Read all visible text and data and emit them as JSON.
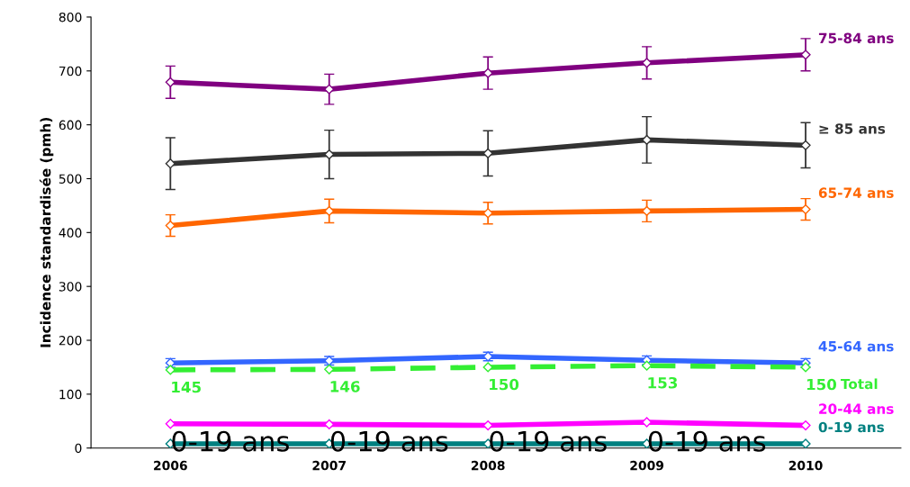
{
  "chart_data": {
    "type": "line",
    "ylabel": "Incidence standardisée (pmh)",
    "categories": [
      "2006",
      "2007",
      "2008",
      "2009",
      "2010"
    ],
    "ylim": [
      0,
      800
    ],
    "yticks": [
      0,
      100,
      200,
      300,
      400,
      500,
      600,
      700,
      800
    ],
    "grid": false,
    "legend": false,
    "marker": "diamond",
    "series": [
      {
        "name": "75-84 ans",
        "color": "#800080",
        "values": [
          679,
          666,
          696,
          715,
          730
        ],
        "errors": [
          30,
          28,
          30,
          30,
          30
        ]
      },
      {
        "name": "≥ 85 ans",
        "color": "#333333",
        "values": [
          528,
          545,
          547,
          572,
          562
        ],
        "errors": [
          48,
          45,
          42,
          43,
          42
        ]
      },
      {
        "name": "65-74 ans",
        "color": "#ff6600",
        "values": [
          413,
          440,
          436,
          440,
          443
        ],
        "errors": [
          20,
          22,
          20,
          20,
          20
        ]
      },
      {
        "name": "45-64 ans",
        "color": "#3366ff",
        "values": [
          158,
          162,
          170,
          163,
          158
        ],
        "errors": [
          8,
          8,
          8,
          8,
          8
        ]
      },
      {
        "name": "Total",
        "color": "#33ee33",
        "line_style": "dashed",
        "values": [
          145,
          146,
          150,
          153,
          150
        ],
        "value_labels": [
          "145",
          "146",
          "150",
          "153",
          "150"
        ]
      },
      {
        "name": "20-44 ans",
        "color": "#ff00ff",
        "values": [
          45,
          44,
          42,
          48,
          42
        ]
      },
      {
        "name": "0-19 ans",
        "color": "#008080",
        "values": [
          8,
          8,
          8,
          8,
          8
        ]
      }
    ],
    "annotations": [
      {
        "text": "0-19 ans",
        "x": "2006",
        "y": 8
      },
      {
        "text": "0-19 ans",
        "x": "2007",
        "y": 8
      },
      {
        "text": "0-19 ans",
        "x": "2008",
        "y": 8
      },
      {
        "text": "0-19 ans",
        "x": "2009",
        "y": 8
      }
    ]
  }
}
